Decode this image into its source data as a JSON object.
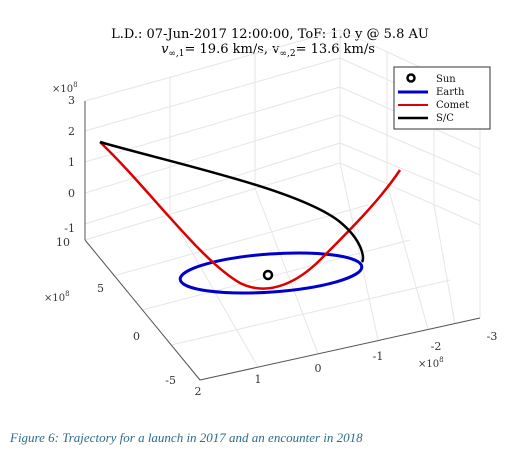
{
  "chart_data": {
    "type": "line",
    "title_line1": "L.D.: 07-Jun-2017 12:00:00, ToF: 1.0 y @ 5.8 AU",
    "title_line2_prefix": "v",
    "title_sub1": "∞,1",
    "title_mid": "= 19.6 km/s, v",
    "title_sub2": "∞,2",
    "title_suffix": "= 13.6 km/s",
    "axis_multiplier": "×10",
    "axis_multiplier_exp": "8",
    "x_ticks": [
      "2",
      "1",
      "0",
      "-1",
      "-2",
      "-3"
    ],
    "y_ticks": [
      "-5",
      "0",
      "5",
      "10"
    ],
    "z_ticks": [
      "-1",
      "0",
      "1",
      "2",
      "3"
    ],
    "legend": [
      {
        "label": "Sun",
        "color": "#000000",
        "marker": "circle"
      },
      {
        "label": "Earth",
        "color": "#0000cc",
        "marker": "line"
      },
      {
        "label": "Comet",
        "color": "#dd0000",
        "marker": "line"
      },
      {
        "label": "S/C",
        "color": "#000000",
        "marker": "line"
      }
    ],
    "series": [
      {
        "name": "Earth",
        "color": "#0000cc",
        "shape": "orbit-ellipse",
        "x_range": [
          -1.5,
          1.5
        ],
        "y_range": [
          -1.5,
          1.5
        ],
        "z": 0
      },
      {
        "name": "Comet",
        "color": "#dd0000",
        "shape": "trajectory",
        "x_range": [
          -2.5,
          2
        ],
        "y_range": [
          -1,
          8
        ],
        "z_range": [
          0,
          2
        ]
      },
      {
        "name": "S/C",
        "color": "#000000",
        "shape": "transfer-arc",
        "x_range": [
          -1.5,
          2
        ],
        "y_range": [
          -1,
          8
        ],
        "z_range": [
          0,
          2
        ]
      }
    ],
    "sun": {
      "x": 0,
      "y": 0,
      "z": 0
    },
    "grid": true
  },
  "caption": "Figure 6: Trajectory for a launch in 2017 and an encounter in 2018"
}
